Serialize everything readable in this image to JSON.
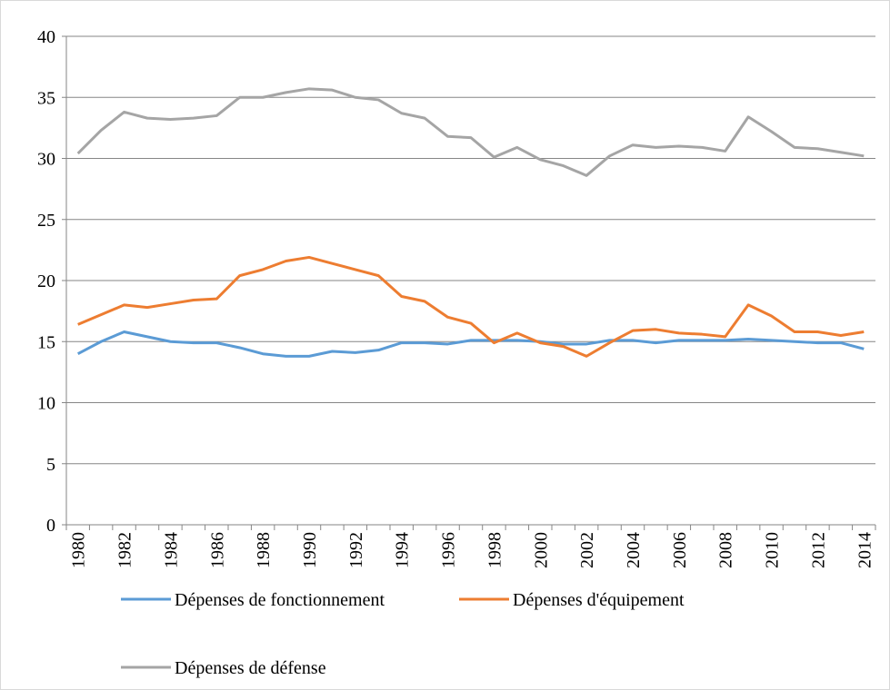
{
  "chart_data": {
    "type": "line",
    "categories": [
      "1980",
      null,
      "1982",
      null,
      "1984",
      null,
      "1986",
      null,
      "1988",
      null,
      "1990",
      null,
      "1992",
      null,
      "1994",
      null,
      "1996",
      null,
      "1998",
      null,
      "2000",
      null,
      "2002",
      null,
      "2004",
      null,
      "2006",
      null,
      "2008",
      null,
      "2010",
      null,
      "2012",
      null,
      "2014"
    ],
    "series": [
      {
        "name": "Dépenses de fonctionnement",
        "color": "#5b9bd5",
        "values": [
          14.0,
          15.0,
          15.8,
          15.4,
          15.0,
          14.9,
          14.9,
          14.5,
          14.0,
          13.8,
          13.8,
          14.2,
          14.1,
          14.3,
          14.9,
          14.9,
          14.8,
          15.1,
          15.1,
          15.1,
          15.0,
          14.8,
          14.8,
          15.1,
          15.1,
          14.9,
          15.1,
          15.1,
          15.1,
          15.2,
          15.1,
          15.0,
          14.9,
          14.9,
          14.4
        ]
      },
      {
        "name": "Dépenses d'équipement",
        "color": "#ed7d31",
        "values": [
          16.4,
          17.2,
          18.0,
          17.8,
          18.1,
          18.4,
          18.5,
          20.4,
          20.9,
          21.6,
          21.9,
          21.4,
          20.9,
          20.4,
          18.7,
          18.3,
          17.0,
          16.5,
          14.9,
          15.7,
          14.9,
          14.6,
          13.8,
          14.9,
          15.9,
          16.0,
          15.7,
          15.6,
          15.4,
          18.0,
          17.1,
          15.8,
          15.8,
          15.5,
          15.8
        ]
      },
      {
        "name": "Dépenses de défense",
        "color": "#a5a5a5",
        "values": [
          30.4,
          32.3,
          33.8,
          33.3,
          33.2,
          33.3,
          33.5,
          35.0,
          35.0,
          35.4,
          35.7,
          35.6,
          35.0,
          34.8,
          33.7,
          33.3,
          31.8,
          31.7,
          30.1,
          30.9,
          29.9,
          29.4,
          28.6,
          30.2,
          31.1,
          30.9,
          31.0,
          30.9,
          30.6,
          33.4,
          32.2,
          30.9,
          30.8,
          30.5,
          30.2
        ]
      }
    ],
    "ylim": [
      0,
      40
    ],
    "yticks": [
      0,
      5,
      10,
      15,
      20,
      25,
      30,
      35,
      40
    ],
    "grid": true,
    "legend": "bottom"
  }
}
